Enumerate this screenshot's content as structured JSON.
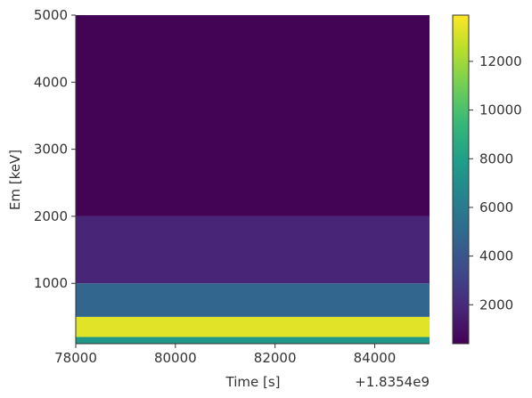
{
  "chart_data": {
    "type": "heatmap",
    "title": "",
    "xlabel": "Time [s]",
    "ylabel": "Em [keV]",
    "x_offset_label": "+1.8354e9",
    "xlim": [
      78000,
      85100
    ],
    "ylim": [
      100,
      5000
    ],
    "x_ticks": [
      78000,
      80000,
      82000,
      84000
    ],
    "x_tick_labels": [
      "78000",
      "80000",
      "82000",
      "84000"
    ],
    "y_ticks": [
      1000,
      2000,
      3000,
      4000,
      5000
    ],
    "y_tick_labels": [
      "1000",
      "2000",
      "3000",
      "4000",
      "5000"
    ],
    "colormap": "viridis",
    "colorbar": {
      "range": [
        400,
        13900
      ],
      "ticks": [
        2000,
        4000,
        6000,
        8000,
        10000,
        12000
      ],
      "tick_labels": [
        "2000",
        "4000",
        "6000",
        "8000",
        "10000",
        "12000"
      ]
    },
    "energy_bands": [
      {
        "low": 100,
        "high": 200,
        "value": 7500
      },
      {
        "low": 200,
        "high": 500,
        "value": 13300
      },
      {
        "low": 500,
        "high": 1000,
        "value": 4800
      },
      {
        "low": 1000,
        "high": 2000,
        "value": 1800
      },
      {
        "low": 2000,
        "high": 5000,
        "value": 500
      }
    ]
  }
}
